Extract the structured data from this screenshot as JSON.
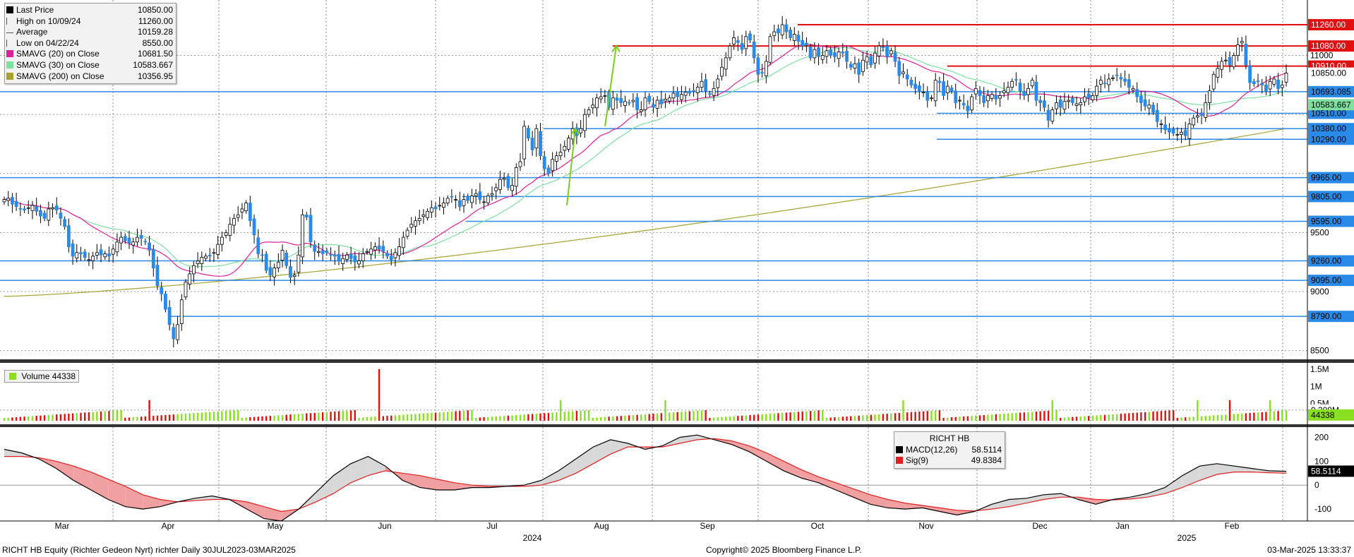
{
  "chart_data": {
    "type": "candlestick",
    "ticker": "RICHT HB",
    "price_panel": {
      "legend": [
        {
          "label": "Last Price",
          "value": "10850.00",
          "color": "#000000"
        },
        {
          "label": "High on 10/09/24",
          "value": "11260.00",
          "color": "#666666"
        },
        {
          "label": "Average",
          "value": "10159.28",
          "color": "#666666"
        },
        {
          "label": "Low on 04/22/24",
          "value": "8550.00",
          "color": "#666666"
        },
        {
          "label": "SMAVG (20)  on Close",
          "value": "10681.50",
          "color": "#e0209a"
        },
        {
          "label": "SMAVG (30)  on Close",
          "value": "10583.667",
          "color": "#7fe0a0"
        },
        {
          "label": "SMAVG (200)  on Close",
          "value": "10356.95",
          "color": "#a8a030"
        }
      ],
      "ylim": [
        8450,
        11350
      ],
      "y_ticks": [
        "8500",
        "9000",
        "9500",
        "11000"
      ],
      "resistance_levels": [
        {
          "label": "11260.00",
          "value": 11260
        },
        {
          "label": "11080.00",
          "value": 11080
        },
        {
          "label": "10910.00",
          "value": 10910
        }
      ],
      "support_levels": [
        {
          "label": "10693.085",
          "value": 10693
        },
        {
          "label": "10510.00",
          "value": 10510
        },
        {
          "label": "10380.00",
          "value": 10380
        },
        {
          "label": "10290.00",
          "value": 10290
        },
        {
          "label": "9965.00",
          "value": 9965
        },
        {
          "label": "9805.00",
          "value": 9805
        },
        {
          "label": "9595.00",
          "value": 9595
        },
        {
          "label": "9260.00",
          "value": 9260
        },
        {
          "label": "9095.00",
          "value": 9095
        },
        {
          "label": "8790.00",
          "value": 8790
        }
      ],
      "last_price_label": "10850.00",
      "smavg30_label": "10583.667",
      "close": [
        9780,
        9790,
        9740,
        9720,
        9700,
        9690,
        9710,
        9730,
        9680,
        9640,
        9620,
        9700,
        9710,
        9690,
        9620,
        9550,
        9380,
        9300,
        9330,
        9320,
        9290,
        9270,
        9300,
        9330,
        9310,
        9320,
        9300,
        9360,
        9420,
        9460,
        9430,
        9410,
        9420,
        9460,
        9450,
        9420,
        9350,
        9200,
        9050,
        8980,
        8850,
        8720,
        8600,
        8720,
        8930,
        9080,
        9150,
        9220,
        9260,
        9290,
        9300,
        9300,
        9330,
        9400,
        9460,
        9500,
        9570,
        9620,
        9650,
        9700,
        9750,
        9600,
        9480,
        9320,
        9310,
        9180,
        9140,
        9200,
        9250,
        9350,
        9220,
        9120,
        9140,
        9310,
        9650,
        9630,
        9420,
        9340,
        9340,
        9320,
        9330,
        9310,
        9300,
        9260,
        9280,
        9310,
        9280,
        9250,
        9260,
        9320,
        9340,
        9360,
        9380,
        9360,
        9340,
        9300,
        9270,
        9330,
        9380,
        9460,
        9520,
        9570,
        9600,
        9620,
        9650,
        9680,
        9710,
        9700,
        9730,
        9750,
        9790,
        9800,
        9780,
        9720,
        9780,
        9770,
        9810,
        9830,
        9780,
        9760,
        9810,
        9830,
        9880,
        9950,
        9960,
        9880,
        9900,
        10050,
        10100,
        10400,
        10300,
        10200,
        10380,
        10150,
        10040,
        10000,
        10120,
        10150,
        10180,
        10230,
        10300,
        10380,
        10320,
        10380,
        10500,
        10540,
        10580,
        10640,
        10650,
        10660,
        10560,
        10640,
        10620,
        10600,
        10610,
        10600,
        10620,
        10540,
        10540,
        10640,
        10610,
        10560,
        10620,
        10590,
        10630,
        10640,
        10680,
        10650,
        10670,
        10690,
        10680,
        10700,
        10730,
        10780,
        10700,
        10670,
        10720,
        10800,
        10900,
        10980,
        11080,
        11150,
        11110,
        11050,
        11160,
        11130,
        10980,
        10840,
        10850,
        10950,
        11160,
        11200,
        11190,
        11260,
        11200,
        11150,
        11180,
        11120,
        11080,
        11090,
        10980,
        11050,
        10990,
        11000,
        11040,
        11000,
        10990,
        11030,
        11020,
        10950,
        10900,
        10930,
        10840,
        10960,
        10990,
        10920,
        11020,
        11080,
        11070,
        10990,
        11040,
        10950,
        10830,
        10860,
        10800,
        10750,
        10720,
        10700,
        10690,
        10620,
        10640,
        10790,
        10770,
        10660,
        10740,
        10700,
        10600,
        10620,
        10580,
        10530,
        10650,
        10720,
        10660,
        10600,
        10660,
        10670,
        10630,
        10660,
        10700,
        10730,
        10780,
        10790,
        10700,
        10660,
        10720,
        10790,
        10620,
        10600,
        10560,
        10450,
        10540,
        10600,
        10560,
        10610,
        10620,
        10600,
        10590,
        10600,
        10650,
        10640,
        10660,
        10740,
        10790,
        10760,
        10800,
        10810,
        10830,
        10800,
        10780,
        10730,
        10720,
        10650,
        10600,
        10570,
        10580,
        10520,
        10440,
        10420,
        10370,
        10350,
        10340,
        10330,
        10350,
        10320,
        10420,
        10470,
        10490,
        10490,
        10600,
        10700,
        10840,
        10890,
        10950,
        10960,
        10920,
        11000,
        11090,
        11120,
        10920,
        10770,
        10760,
        10780,
        10750,
        10700,
        10780,
        10800,
        10720,
        10750,
        10850
      ],
      "sma20": [
        9700,
        9710,
        9710,
        9700,
        9690,
        9680,
        9670,
        9660,
        9640,
        9610,
        9580,
        9560,
        9540,
        9520,
        9500,
        9480,
        9460,
        9440,
        9420,
        9410,
        9400,
        9390,
        9385,
        9380,
        9375,
        9375,
        9375,
        9380,
        9385,
        9390,
        9390,
        9380,
        9350,
        9310,
        9270,
        9230,
        9200,
        9180,
        9170,
        9160,
        9150,
        9140,
        9140,
        9140,
        9145,
        9150,
        9160,
        9170,
        9180,
        9200,
        9220,
        9240,
        9260,
        9280,
        9300,
        9320,
        9330,
        9330,
        9325,
        9320,
        9320,
        9320,
        9320,
        9320,
        9320,
        9325,
        9330,
        9335,
        9340,
        9345,
        9345,
        9345,
        9345,
        9345,
        9345,
        9345,
        9345,
        9345,
        9345,
        9345,
        9350,
        9360,
        9370,
        9385,
        9400,
        9420,
        9440,
        9460,
        9490,
        9520,
        9560,
        9600,
        9640,
        9680,
        9730,
        9780,
        9820,
        9870,
        9920,
        9970,
        10020,
        10070,
        10120,
        10170,
        10220,
        10260,
        10300,
        10340,
        10380,
        10410,
        10440,
        10470,
        10500,
        10520,
        10540,
        10560,
        10580,
        10600,
        10620,
        10640,
        10660,
        10680,
        10700,
        10720,
        10740,
        10760,
        10780,
        10800,
        10820,
        10840,
        10860,
        10880,
        10900,
        10920,
        10940,
        10960,
        10980,
        10990,
        10990,
        10990,
        10985,
        10980,
        10975,
        10970,
        10965,
        10960,
        10955,
        10950,
        10945,
        10940,
        10930,
        10920,
        10900,
        10880,
        10860,
        10840,
        10820,
        10800,
        10780,
        10760,
        10740,
        10720,
        10700,
        10680,
        10670,
        10660,
        10650,
        10640,
        10630,
        10620,
        10615,
        10610,
        10605,
        10600,
        10595,
        10590,
        10585,
        10580,
        10580,
        10585,
        10590,
        10600,
        10610,
        10620,
        10630,
        10640,
        10650,
        10660,
        10670,
        10675,
        10680,
        10680
      ]
    },
    "volume_panel": {
      "legend": {
        "label": "Volume",
        "value": "44338"
      },
      "y_ticks": [
        "1.5M",
        "1M",
        "0.5M"
      ],
      "average_label": "0.309M",
      "last_label": "44338",
      "ylim": [
        0,
        1600000
      ]
    },
    "macd_panel": {
      "legend_title": "RICHT HB",
      "legend": [
        {
          "label": "MACD(12,26)",
          "value": "58.5114",
          "color": "#000000"
        },
        {
          "label": "Sig(9)",
          "value": "49.8384",
          "color": "#e02020"
        }
      ],
      "y_ticks": [
        "200",
        "100",
        "0",
        "-100"
      ],
      "last_label": "58.5114",
      "ylim": [
        -150,
        240
      ],
      "macd": [
        150,
        135,
        110,
        70,
        20,
        -20,
        -60,
        -90,
        -100,
        -90,
        -70,
        -55,
        -45,
        -60,
        -100,
        -140,
        -150,
        -100,
        -30,
        40,
        90,
        120,
        80,
        20,
        -10,
        -20,
        -20,
        -10,
        -10,
        -5,
        0,
        20,
        60,
        110,
        160,
        190,
        175,
        150,
        165,
        200,
        210,
        190,
        170,
        140,
        100,
        60,
        30,
        10,
        -20,
        -50,
        -80,
        -95,
        -100,
        -95,
        -110,
        -125,
        -110,
        -80,
        -60,
        -55,
        -40,
        -35,
        -60,
        -80,
        -60,
        -50,
        -35,
        -10,
        40,
        80,
        90,
        80,
        70,
        60,
        58
      ],
      "signal": [
        120,
        120,
        115,
        100,
        80,
        55,
        25,
        -5,
        -40,
        -60,
        -70,
        -65,
        -60,
        -60,
        -70,
        -90,
        -110,
        -100,
        -70,
        -35,
        10,
        40,
        60,
        50,
        40,
        25,
        10,
        0,
        -5,
        -5,
        -5,
        0,
        20,
        50,
        90,
        130,
        160,
        160,
        160,
        175,
        190,
        195,
        185,
        165,
        135,
        100,
        65,
        35,
        10,
        -15,
        -40,
        -60,
        -75,
        -85,
        -95,
        -105,
        -108,
        -100,
        -90,
        -75,
        -60,
        -50,
        -50,
        -60,
        -62,
        -58,
        -50,
        -35,
        -10,
        20,
        45,
        55,
        55,
        52,
        50
      ]
    },
    "x_axis": {
      "months": [
        "Mar",
        "Apr",
        "May",
        "Jun",
        "Jul",
        "Aug",
        "Sep",
        "Oct",
        "Nov",
        "Dec",
        "Jan",
        "Feb"
      ],
      "years": [
        "2024",
        "2025"
      ]
    }
  },
  "footer": {
    "left": "RICHT HB Equity (Richter Gedeon Nyrt) richter  Daily 30JUL2023-03MAR2025",
    "center": "Copyright© 2025 Bloomberg Finance L.P.",
    "right": "03-Mar-2025 13:33:37"
  },
  "colors": {
    "up_candle": "#ffffff",
    "down_candle": "#2a8ae8",
    "resistance": "#e01010",
    "support": "#2a8ae8",
    "volume_up": "#88e020",
    "volume_down": "#e01010",
    "trend_arrow": "#7ccc20"
  }
}
